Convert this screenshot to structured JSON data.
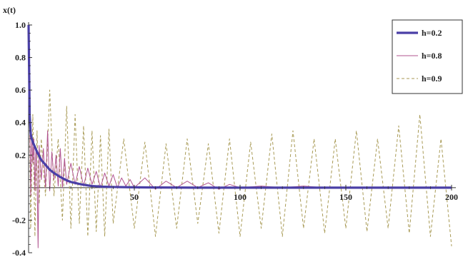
{
  "chart_data": {
    "type": "line",
    "title": "",
    "ylabel": "x(t)",
    "xlabel": "",
    "xlim": [
      0,
      200
    ],
    "ylim": [
      -0.4,
      1.0
    ],
    "xticks": [
      50,
      100,
      150,
      200
    ],
    "xtick_labels": [
      "50",
      "100",
      "150",
      "200"
    ],
    "yticks": [
      -0.4,
      -0.2,
      0.2,
      0.4,
      0.6,
      0.8,
      1.0
    ],
    "ytick_labels": [
      "-0.4",
      "-0.2",
      "0.2",
      "0.4",
      "0.6",
      "0.8",
      "1.0"
    ],
    "legend_position": "top-right",
    "series": [
      {
        "name": "h=0.2",
        "color": "#4a3fa6",
        "style": "solid-thick",
        "x": [
          0,
          0.5,
          1,
          1.5,
          2,
          3,
          4,
          5,
          6,
          8,
          10,
          12,
          15,
          18,
          20,
          25,
          30,
          35,
          40,
          50,
          60,
          80,
          100,
          150,
          200
        ],
        "values": [
          1.0,
          0.45,
          0.33,
          0.3,
          0.28,
          0.25,
          0.22,
          0.195,
          0.17,
          0.14,
          0.11,
          0.09,
          0.065,
          0.045,
          0.035,
          0.02,
          0.01,
          0.006,
          0.004,
          0.002,
          0.001,
          0.0,
          0.0,
          0.0,
          0.0
        ]
      },
      {
        "name": "h=0.8",
        "color": "#b0538f",
        "style": "solid-thin",
        "x": [
          0,
          0.5,
          1,
          1.5,
          2,
          2.5,
          3,
          3.5,
          4,
          4.5,
          5,
          6,
          7,
          8,
          9,
          10,
          11,
          12,
          13,
          14,
          15,
          16,
          17,
          18,
          20,
          22,
          24,
          26,
          28,
          30,
          32,
          34,
          36,
          38,
          40,
          42,
          44,
          46,
          48,
          50,
          55,
          60,
          65,
          70,
          75,
          80,
          85,
          90,
          95,
          100,
          110,
          120,
          130,
          140,
          150,
          160,
          170,
          180,
          190,
          200
        ],
        "values": [
          1.0,
          0.5,
          -0.05,
          0.32,
          0.15,
          0.3,
          -0.02,
          0.25,
          0.1,
          -0.37,
          0.26,
          0.05,
          0.24,
          0.0,
          0.35,
          -0.02,
          0.22,
          0.05,
          0.2,
          0.01,
          0.24,
          0.0,
          0.18,
          0.02,
          0.15,
          0.02,
          0.13,
          0.01,
          0.12,
          0.02,
          0.1,
          0.0,
          0.09,
          0.01,
          0.08,
          0.0,
          0.06,
          0.01,
          0.05,
          0.0,
          0.06,
          -0.01,
          0.04,
          0.0,
          0.04,
          0.0,
          0.03,
          -0.01,
          0.02,
          0.0,
          0.01,
          0.0,
          0.01,
          0.0,
          0.0,
          0.0,
          0.0,
          0.0,
          0.0,
          0.0
        ]
      },
      {
        "name": "h=0.9",
        "color": "#a89a55",
        "style": "dashed",
        "x": [
          0,
          1,
          2,
          3,
          4,
          5,
          6,
          8,
          10,
          12,
          14,
          16,
          18,
          20,
          22,
          24,
          26,
          28,
          30,
          32,
          34,
          36,
          38,
          40,
          45,
          50,
          55,
          60,
          65,
          70,
          75,
          80,
          85,
          90,
          95,
          100,
          105,
          110,
          115,
          120,
          125,
          130,
          135,
          140,
          145,
          150,
          155,
          160,
          165,
          170,
          175,
          180,
          185,
          190,
          195,
          200
        ],
        "values": [
          1.0,
          -0.25,
          0.45,
          -0.3,
          0.35,
          -0.1,
          0.3,
          -0.05,
          0.6,
          -0.05,
          0.3,
          -0.2,
          0.5,
          -0.25,
          0.45,
          -0.22,
          0.38,
          -0.3,
          0.35,
          -0.27,
          0.32,
          -0.3,
          0.36,
          -0.22,
          0.3,
          -0.25,
          0.28,
          -0.3,
          0.27,
          -0.25,
          0.3,
          -0.22,
          0.27,
          -0.28,
          0.3,
          -0.3,
          0.28,
          -0.25,
          0.33,
          -0.3,
          0.35,
          -0.25,
          0.3,
          -0.28,
          0.3,
          -0.25,
          0.35,
          -0.27,
          0.3,
          -0.25,
          0.38,
          -0.28,
          0.45,
          -0.3,
          0.3,
          -0.36
        ]
      }
    ]
  }
}
